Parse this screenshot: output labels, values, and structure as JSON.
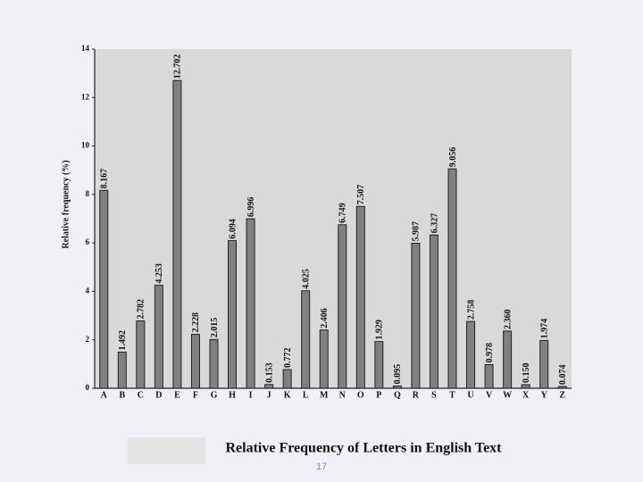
{
  "chart_data": {
    "type": "bar",
    "title": "Relative Frequency of Letters in English Text",
    "y_label": "Relative frequency (%)",
    "categories": [
      "A",
      "B",
      "C",
      "D",
      "E",
      "F",
      "G",
      "H",
      "I",
      "J",
      "K",
      "L",
      "M",
      "N",
      "O",
      "P",
      "Q",
      "R",
      "S",
      "T",
      "U",
      "V",
      "W",
      "X",
      "Y",
      "Z"
    ],
    "values": [
      8.167,
      1.492,
      2.782,
      4.253,
      12.702,
      2.228,
      2.015,
      6.094,
      6.996,
      0.153,
      0.772,
      4.025,
      2.406,
      6.749,
      7.507,
      1.929,
      0.095,
      5.987,
      6.327,
      9.056,
      2.758,
      0.978,
      2.36,
      0.15,
      1.974,
      0.074
    ],
    "value_labels": [
      "8.167",
      "1.492",
      "2.782",
      "4.253",
      "12.702",
      "2.228",
      "2.015",
      "6.094",
      "6.996",
      "0.153",
      "0.772",
      "4.025",
      "2.406",
      "6.749",
      "7.507",
      "1.929",
      "0.095",
      "5.987",
      "6.327",
      "9.056",
      "2.758",
      "0.978",
      "2.360",
      "0.150",
      "1.974",
      "0.074"
    ],
    "color": "#808080",
    "ylim": [
      0,
      14
    ],
    "yticks": [
      0,
      2,
      4,
      6,
      8,
      10,
      12,
      14
    ],
    "grid": false
  },
  "slide_number": "17"
}
